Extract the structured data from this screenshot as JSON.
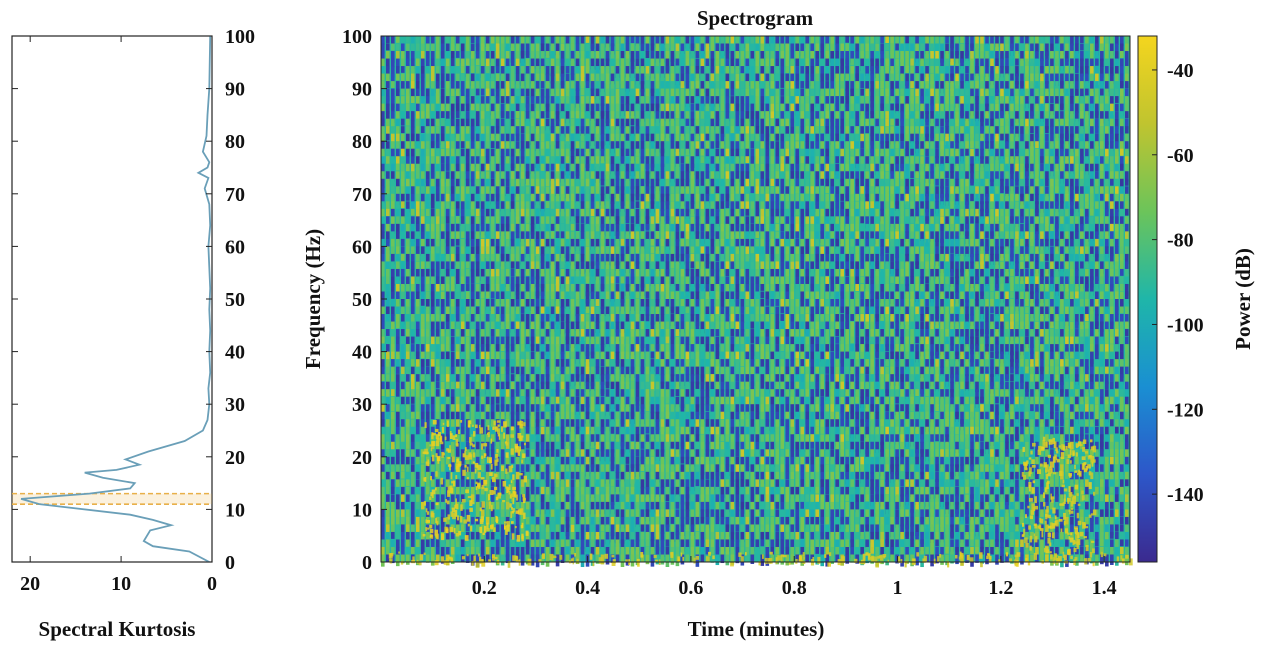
{
  "chart_data": [
    {
      "type": "line",
      "xlabel": "Spectral Kurtosis",
      "x_axis_reversed": true,
      "xlim": [
        22,
        0
      ],
      "xticks": [
        20,
        10,
        0
      ],
      "ylim": [
        0,
        100
      ],
      "yticks": [
        0,
        10,
        20,
        30,
        40,
        50,
        60,
        70,
        80,
        90,
        100
      ],
      "y_axis_side": "right",
      "line_color": "#6a9fb8",
      "highlight_band": {
        "y_range": [
          11,
          13
        ],
        "color": "#e8b04a"
      },
      "series": [
        {
          "x": [
            0.3,
            2.5,
            6.5,
            7.5,
            6.8,
            4.5,
            6.5,
            9.0,
            19.0,
            21.0,
            13.5,
            9.0,
            8.5,
            12.0,
            14.0,
            10.5,
            8.0,
            9.5,
            7.0,
            3.0,
            1.0,
            0.5,
            0.3,
            0.4,
            0.2,
            0.3,
            0.2,
            0.3,
            0.2,
            0.3,
            0.4,
            0.2,
            0.3,
            0.8,
            0.4,
            1.5,
            0.5,
            0.3,
            1.0,
            0.6,
            0.5,
            0.3,
            0.2
          ],
          "y": [
            0,
            2,
            3,
            4,
            6,
            7,
            8,
            9,
            11,
            12,
            13,
            14,
            15,
            16,
            17,
            17.5,
            18.5,
            19.5,
            21,
            23,
            25,
            27,
            30,
            33,
            36,
            40,
            44,
            48,
            52,
            56,
            60,
            64,
            68,
            71,
            73,
            74,
            75,
            76,
            78,
            81,
            85,
            90,
            100
          ]
        }
      ]
    },
    {
      "type": "heatmap",
      "title": "Spectrogram",
      "xlabel": "Time (minutes)",
      "ylabel": "Frequency (Hz)",
      "xlim": [
        0,
        1.45
      ],
      "xticks": [
        0.2,
        0.4,
        0.6,
        0.8,
        1,
        1.2,
        1.4
      ],
      "ylim": [
        0,
        100
      ],
      "yticks": [
        0,
        10,
        20,
        30,
        40,
        50,
        60,
        70,
        80,
        90,
        100
      ],
      "colorbar": {
        "label": "Power (dB)",
        "range": [
          -156,
          -32
        ],
        "ticks": [
          -40,
          -60,
          -80,
          -100,
          -120,
          -140
        ],
        "colormap": [
          "#3b2a8f",
          "#2d57c9",
          "#1a8fd2",
          "#1fb6a9",
          "#6cc45a",
          "#c0c42f",
          "#f4d51e"
        ]
      },
      "background_power_db": -92,
      "hotspots": [
        {
          "time_range": [
            0.08,
            0.28
          ],
          "freq_range": [
            5,
            27
          ],
          "power_db": -45
        },
        {
          "time_range": [
            1.24,
            1.38
          ],
          "freq_range": [
            2,
            24
          ],
          "power_db": -48
        },
        {
          "time_range": [
            0,
            1.45
          ],
          "freq_range": [
            0,
            2
          ],
          "power_db": -50
        }
      ]
    }
  ]
}
